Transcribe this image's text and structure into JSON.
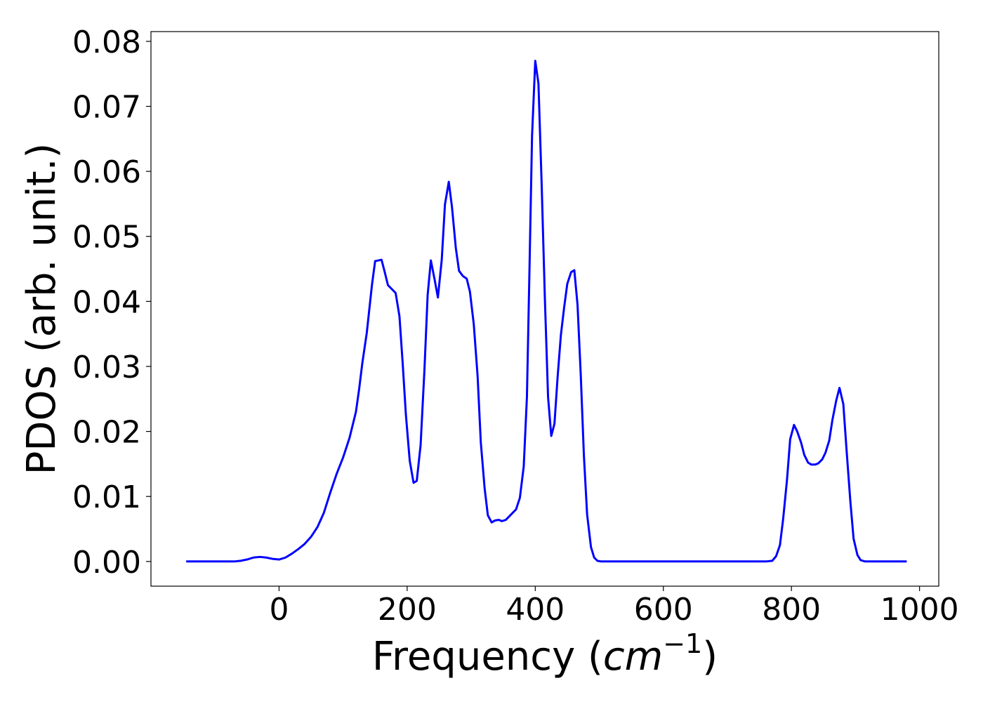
{
  "chart_data": {
    "type": "line",
    "xlabel": "Frequency (",
    "xlabel_unit": "cm",
    "xlabel_exponent": "−1",
    "xlabel_close": ")",
    "ylabel": "PDOS (arb. unit.)",
    "xlim": [
      -200,
      1030
    ],
    "ylim": [
      -0.0038,
      0.0815
    ],
    "x_ticks": [
      {
        "value": 0,
        "label": "0"
      },
      {
        "value": 200,
        "label": "200"
      },
      {
        "value": 400,
        "label": "400"
      },
      {
        "value": 600,
        "label": "600"
      },
      {
        "value": 800,
        "label": "800"
      },
      {
        "value": 1000,
        "label": "1000"
      }
    ],
    "y_ticks": [
      {
        "value": 0.0,
        "label": "0.00"
      },
      {
        "value": 0.01,
        "label": "0.01"
      },
      {
        "value": 0.02,
        "label": "0.02"
      },
      {
        "value": 0.03,
        "label": "0.03"
      },
      {
        "value": 0.04,
        "label": "0.04"
      },
      {
        "value": 0.05,
        "label": "0.05"
      },
      {
        "value": 0.06,
        "label": "0.06"
      },
      {
        "value": 0.07,
        "label": "0.07"
      },
      {
        "value": 0.08,
        "label": "0.08"
      }
    ],
    "grid": false,
    "legend": "none",
    "series": [
      {
        "color": "#0000ff",
        "x": [
          -145,
          -70,
          -60,
          -50,
          -40,
          -30,
          -20,
          -10,
          0,
          10,
          20,
          30,
          40,
          50,
          60,
          70,
          80,
          90,
          100,
          110,
          120,
          125,
          130,
          137,
          145,
          150,
          160,
          165,
          170,
          176,
          182,
          188,
          193,
          198,
          204,
          210,
          215,
          221,
          227,
          232,
          237,
          243,
          248,
          254,
          259,
          265,
          270,
          276,
          281,
          287,
          293,
          298,
          304,
          310,
          315,
          321,
          326,
          332,
          337,
          343,
          348,
          354,
          359,
          365,
          370,
          376,
          382,
          387,
          391,
          395,
          400,
          405,
          410,
          415,
          420,
          425,
          430,
          435,
          440,
          445,
          450,
          456,
          461,
          466,
          471,
          476,
          481,
          487,
          492,
          497,
          503,
          510,
          760,
          770,
          776,
          782,
          787,
          793,
          798,
          804,
          809,
          815,
          820,
          826,
          831,
          837,
          842,
          848,
          853,
          859,
          864,
          870,
          875,
          881,
          886,
          892,
          897,
          903,
          908,
          915,
          925,
          980
        ],
        "y": [
          0.0,
          0.0,
          0.0001,
          0.0003,
          0.0006,
          0.0007,
          0.0006,
          0.0004,
          0.0003,
          0.0006,
          0.0012,
          0.0019,
          0.0027,
          0.0038,
          0.0053,
          0.0075,
          0.0106,
          0.0135,
          0.016,
          0.019,
          0.023,
          0.0265,
          0.0305,
          0.0352,
          0.0425,
          0.0462,
          0.0464,
          0.0445,
          0.0425,
          0.0419,
          0.0413,
          0.0377,
          0.0305,
          0.0226,
          0.0155,
          0.0121,
          0.0124,
          0.0179,
          0.0295,
          0.041,
          0.0463,
          0.0433,
          0.0406,
          0.0464,
          0.0549,
          0.0584,
          0.0545,
          0.0482,
          0.0447,
          0.0439,
          0.0435,
          0.0415,
          0.0365,
          0.0285,
          0.0183,
          0.0112,
          0.0071,
          0.006,
          0.0063,
          0.0064,
          0.0062,
          0.0064,
          0.0069,
          0.0075,
          0.008,
          0.0098,
          0.0146,
          0.0253,
          0.045,
          0.0655,
          0.077,
          0.0735,
          0.058,
          0.0405,
          0.0253,
          0.0193,
          0.0212,
          0.0285,
          0.0348,
          0.039,
          0.0427,
          0.0445,
          0.0448,
          0.0395,
          0.0288,
          0.0162,
          0.0072,
          0.0022,
          0.0006,
          0.0001,
          0.0,
          0.0,
          0.0,
          0.0001,
          0.0008,
          0.0025,
          0.0065,
          0.0125,
          0.0188,
          0.021,
          0.02,
          0.0183,
          0.0164,
          0.0152,
          0.0149,
          0.0149,
          0.0151,
          0.0157,
          0.0167,
          0.0186,
          0.0218,
          0.0248,
          0.0267,
          0.0242,
          0.0172,
          0.0092,
          0.0035,
          0.001,
          0.0002,
          0.0,
          0.0,
          0.0
        ]
      }
    ]
  }
}
